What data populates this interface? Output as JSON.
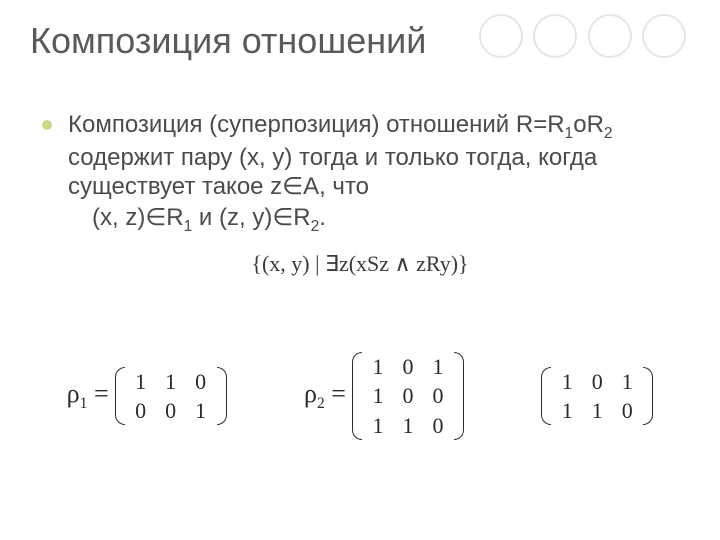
{
  "title": "Композиция отношений",
  "decor": {
    "circle_count": 4,
    "circle_border": "#e6e6e6"
  },
  "bullet": {
    "dot_color": "#c9d98a"
  },
  "paragraph": {
    "line1_a": "Композиция  (суперпозиция) отношений ",
    "line1_b": "R=R",
    "line1_sub1": "1",
    "line1_c": "oR",
    "line1_sub2": "2",
    "line1_d": " содержит пару (x, y) тогда и только тогда, когда существует такое z∈A, что",
    "line2_a": "(x, z)∈R",
    "line2_sub1": "1",
    "line2_b": " и (z, y)∈R",
    "line2_sub2": "2",
    "line2_c": "."
  },
  "set_notation": "{(x,  y) | ∃z(xSz ∧ zRy)}",
  "matrices": {
    "m1": {
      "label": "ρ",
      "label_sub": "1",
      "eq": " = ",
      "rows": 2,
      "cols": 3,
      "values": [
        [
          "1",
          "1",
          "0"
        ],
        [
          "0",
          "0",
          "1"
        ]
      ]
    },
    "m2": {
      "label": "ρ",
      "label_sub": "2",
      "eq": " = ",
      "rows": 3,
      "cols": 3,
      "values": [
        [
          "1",
          "0",
          "1"
        ],
        [
          "1",
          "0",
          "0"
        ],
        [
          "1",
          "1",
          "0"
        ]
      ]
    },
    "m3": {
      "label": "",
      "label_sub": "",
      "eq": "",
      "rows": 2,
      "cols": 3,
      "values": [
        [
          "1",
          "0",
          "1"
        ],
        [
          "1",
          "1",
          "0"
        ]
      ]
    }
  },
  "colors": {
    "text": "#4b4b4b",
    "title": "#5a5a5a",
    "math": "#2b2b2b",
    "background": "#ffffff"
  }
}
